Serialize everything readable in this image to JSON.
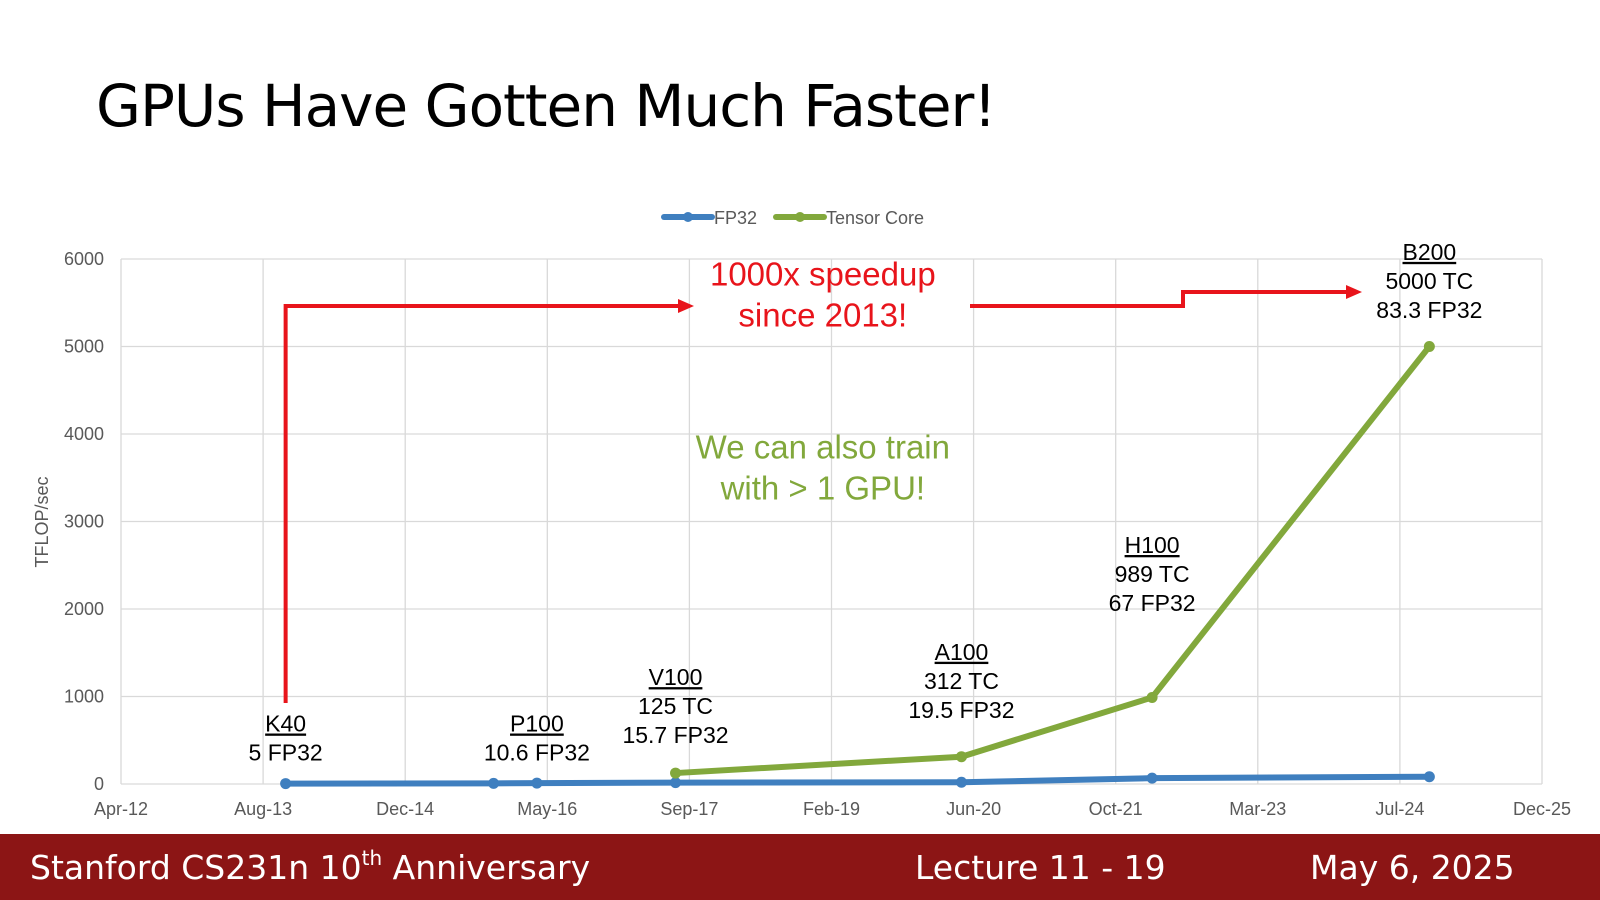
{
  "slide": {
    "title": "GPUs Have Gotten Much Faster!",
    "footer": {
      "course_prefix": "Stanford CS231n 10",
      "course_sup": "th",
      "course_suffix": " Anniversary",
      "lecture": "Lecture 11 -  19",
      "date": "May 6, 2025"
    }
  },
  "chart_data": {
    "type": "line",
    "ylabel": "TFLOP/sec",
    "xlabel": "",
    "ylim": [
      0,
      6000
    ],
    "yticks": [
      0,
      1000,
      2000,
      3000,
      4000,
      5000,
      6000
    ],
    "xticks": [
      "Apr-12",
      "Aug-13",
      "Dec-14",
      "May-16",
      "Sep-17",
      "Feb-19",
      "Jun-20",
      "Oct-21",
      "Mar-23",
      "Jul-24",
      "Dec-25"
    ],
    "xlim": [
      "2012-04",
      "2025-12"
    ],
    "grid": true,
    "legend_position": "top-center",
    "series": [
      {
        "name": "FP32",
        "color": "#3f7fbf",
        "points": [
          {
            "x": "2013-11",
            "y": 5
          },
          {
            "x": "2015-11",
            "y": 7
          },
          {
            "x": "2016-04",
            "y": 10.6
          },
          {
            "x": "2017-08",
            "y": 15.7
          },
          {
            "x": "2020-05",
            "y": 19.5
          },
          {
            "x": "2022-03",
            "y": 67
          },
          {
            "x": "2024-11",
            "y": 83.3
          }
        ]
      },
      {
        "name": "Tensor Core",
        "color": "#82a83c",
        "points": [
          {
            "x": "2017-08",
            "y": 125
          },
          {
            "x": "2020-05",
            "y": 312
          },
          {
            "x": "2022-03",
            "y": 989
          },
          {
            "x": "2024-11",
            "y": 5000
          }
        ]
      }
    ],
    "gpu_labels": [
      {
        "name": "K40",
        "lines": [
          "5 FP32"
        ],
        "x": "2013-11",
        "y": 600
      },
      {
        "name": "P100",
        "lines": [
          "10.6 FP32"
        ],
        "x": "2016-04",
        "y": 600
      },
      {
        "name": "V100",
        "lines": [
          "125 TC",
          "15.7 FP32"
        ],
        "x": "2017-08",
        "y": 1130
      },
      {
        "name": "A100",
        "lines": [
          "312 TC",
          "19.5 FP32"
        ],
        "x": "2020-05",
        "y": 1420
      },
      {
        "name": "H100",
        "lines": [
          "989 TC",
          "67 FP32"
        ],
        "x": "2022-03",
        "y": 2640
      },
      {
        "name": "B200",
        "lines": [
          "5000 TC",
          "83.3 FP32"
        ],
        "x": "2024-11",
        "y": 5990
      }
    ],
    "annotations": [
      {
        "id": "speedup",
        "lines": [
          "1000x speedup",
          "since 2013!"
        ],
        "color": "#e8141b",
        "x": "2019-01",
        "y": 5700
      },
      {
        "id": "multi-gpu",
        "lines": [
          "We can also train",
          "with > 1 GPU!"
        ],
        "color": "#82a83c",
        "x": "2019-01",
        "y": 3720
      }
    ]
  }
}
